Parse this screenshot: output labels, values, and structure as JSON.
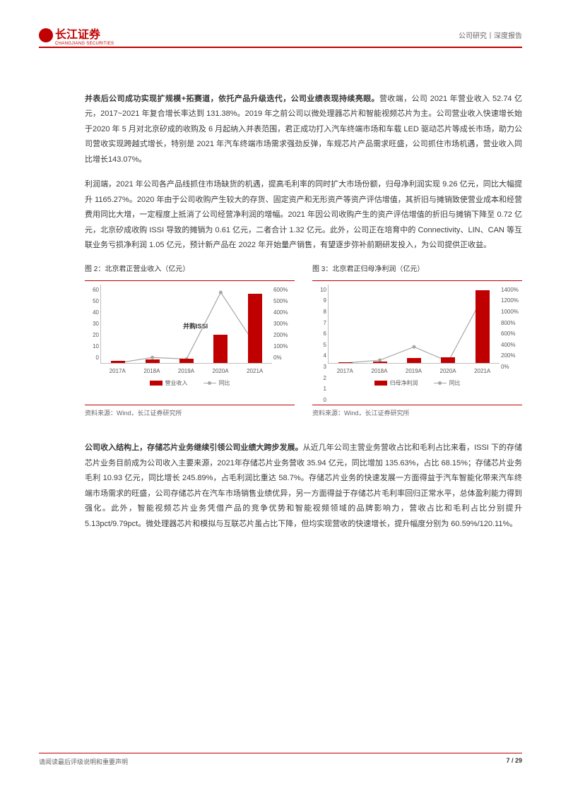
{
  "header": {
    "logo_text": "长江证券",
    "logo_sub": "CHANGJIANG SECURITIES",
    "right": "公司研究丨深度报告"
  },
  "para1": {
    "bold": "并表后公司成功实现扩规模+拓赛道，依托产品升级迭代，公司业绩表现持续亮眼。",
    "text": "营收端，公司 2021 年营业收入 52.74 亿元，2017~2021 年复合增长率达到 131.38%。2019 年之前公司以微处理器芯片和智能视频芯片为主。公司营业收入快速增长始于2020 年 5 月对北京矽成的收购及 6 月起纳入并表范围，君正成功打入汽车终端市场和车载 LED 驱动芯片等成长市场，助力公司营收实现跨越式增长，特别是 2021 年汽车终端市场需求强劲反弹，车规芯片产品需求旺盛，公司抓住市场机遇，营业收入同比增长143.07%。"
  },
  "para2": "利润端，2021 年公司各产品线抓住市场缺货的机遇，提高毛利率的同时扩大市场份额，归母净利润实现 9.26 亿元，同比大幅提升 1165.27%。2020 年由于公司收购产生较大的存货、固定资产和无形资产等资产评估增值，其折旧与摊销致使营业成本和经营费用同比大增，一定程度上抵消了公司经营净利润的增幅。2021 年因公司收购产生的资产评估增值的折旧与摊销下降至 0.72 亿元，北京矽成收购 ISSI 导致的摊销为 0.61 亿元，二者合计 1.32 亿元。此外，公司正在培育中的 Connectivity、LIN、CAN 等互联业务亏损净利润 1.05 亿元，预计新产品在 2022 年开始量产销售，有望逐步弥补前期研发投入，为公司提供正收益。",
  "chart1": {
    "title": "图 2：北京君正营业收入（亿元）",
    "categories": [
      "2017A",
      "2018A",
      "2019A",
      "2020A",
      "2021A"
    ],
    "bar_values": [
      1.8,
      2.6,
      3.4,
      21.7,
      52.7
    ],
    "line_values": [
      0,
      42,
      30,
      540,
      143
    ],
    "y_left_ticks": [
      "60",
      "50",
      "40",
      "30",
      "20",
      "10",
      "0"
    ],
    "y_right_ticks": [
      "600%",
      "500%",
      "400%",
      "300%",
      "200%",
      "100%",
      "0%"
    ],
    "y_left_max": 60,
    "y_right_max": 600,
    "annotation": "并购ISSI",
    "legend_bar": "营业收入",
    "legend_line": "同比",
    "source": "资料来源：Wind，长江证券研究所"
  },
  "chart2": {
    "title": "图 3：北京君正归母净利润（亿元）",
    "categories": [
      "2017A",
      "2018A",
      "2019A",
      "2020A",
      "2021A"
    ],
    "bar_values": [
      0.1,
      0.15,
      0.58,
      0.73,
      9.26
    ],
    "line_values": [
      0,
      50,
      287,
      26,
      1165
    ],
    "y_left_ticks": [
      "10",
      "9",
      "8",
      "7",
      "6",
      "5",
      "4",
      "3",
      "2",
      "1",
      "0"
    ],
    "y_right_ticks": [
      "1400%",
      "1200%",
      "1000%",
      "800%",
      "600%",
      "400%",
      "200%",
      "0%"
    ],
    "y_left_max": 10,
    "y_right_max": 1400,
    "legend_bar": "归母净利润",
    "legend_line": "同比",
    "source": "资料来源：Wind，长江证券研究所"
  },
  "para3": {
    "bold": "公司收入结构上，存储芯片业务继续引领公司业绩大跨步发展。",
    "text": "从近几年公司主营业务营收占比和毛利占比来看，ISSI 下的存储芯片业务目前成为公司收入主要来源，2021年存储芯片业务营收 35.94 亿元，同比增加 135.63%，占比 68.15%；存储芯片业务毛利 10.93 亿元，同比增长 245.89%，占毛利润比重达 58.7%。存储芯片业务的快速发展一方面得益于汽车智能化带来汽车终端市场需求的旺盛，公司存储芯片在汽车市场销售业绩优异，另一方面得益于存储芯片毛利率回归正常水平，总体盈利能力得到强化。此外，智能视频芯片业务凭借产品的竞争优势和智能视频领域的品牌影响力，营收占比和毛利占比分别提升 5.13pct/9.79pct。微处理器芯片和模拟与互联芯片虽占比下降，但均实现营收的快速增长，提升幅度分别为 60.59%/120.11%。"
  },
  "footer": {
    "left": "请阅读最后评级说明和重要声明",
    "page": "7 / 29"
  }
}
